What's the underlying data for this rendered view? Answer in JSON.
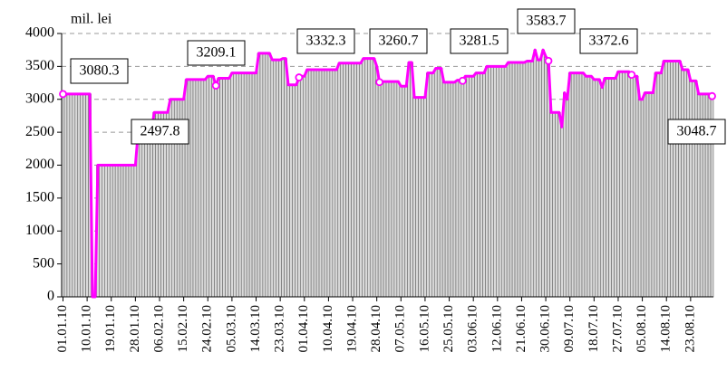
{
  "chart_data": {
    "type": "bar_line",
    "y_label": "mil. lei",
    "ylim": [
      0,
      4000
    ],
    "yticks": [
      0,
      500,
      1000,
      1500,
      2000,
      2500,
      3000,
      3500,
      4000
    ],
    "grid": true,
    "grid_style": "dashed",
    "bar_color": "#d9d9d9",
    "line_color": "#ff00ff",
    "categories": [
      "01.01.10",
      null,
      null,
      null,
      null,
      null,
      null,
      null,
      null,
      "10.01.10",
      null,
      null,
      null,
      null,
      null,
      null,
      null,
      null,
      "19.01.10",
      null,
      null,
      null,
      null,
      null,
      null,
      null,
      null,
      "28.01.10",
      null,
      null,
      null,
      null,
      null,
      null,
      null,
      null,
      "06.02.10",
      null,
      null,
      null,
      null,
      null,
      null,
      null,
      null,
      "15.02.10",
      null,
      null,
      null,
      null,
      null,
      null,
      null,
      null,
      "24.02.10",
      null,
      null,
      null,
      null,
      null,
      null,
      null,
      null,
      "05.03.10",
      null,
      null,
      null,
      null,
      null,
      null,
      null,
      null,
      "14.03.10",
      null,
      null,
      null,
      null,
      null,
      null,
      null,
      null,
      "23.03.10",
      null,
      null,
      null,
      null,
      null,
      null,
      null,
      null,
      "01.04.10",
      null,
      null,
      null,
      null,
      null,
      null,
      null,
      null,
      "10.04.10",
      null,
      null,
      null,
      null,
      null,
      null,
      null,
      null,
      "19.04.10",
      null,
      null,
      null,
      null,
      null,
      null,
      null,
      null,
      "28.04.10",
      null,
      null,
      null,
      null,
      null,
      null,
      null,
      null,
      "07.05.10",
      null,
      null,
      null,
      null,
      null,
      null,
      null,
      null,
      "16.05.10",
      null,
      null,
      null,
      null,
      null,
      null,
      null,
      null,
      "25.05.10",
      null,
      null,
      null,
      null,
      null,
      null,
      null,
      null,
      "03.06.10",
      null,
      null,
      null,
      null,
      null,
      null,
      null,
      null,
      "12.06.10",
      null,
      null,
      null,
      null,
      null,
      null,
      null,
      null,
      "21.06.10",
      null,
      null,
      null,
      null,
      null,
      null,
      null,
      null,
      "30.06.10",
      null,
      null,
      null,
      null,
      null,
      null,
      null,
      null,
      "09.07.10",
      null,
      null,
      null,
      null,
      null,
      null,
      null,
      null,
      "18.07.10",
      null,
      null,
      null,
      null,
      null,
      null,
      null,
      null,
      "27.07.10",
      null,
      null,
      null,
      null,
      null,
      null,
      null,
      null,
      "05.08.10",
      null,
      null,
      null,
      null,
      null,
      null,
      null,
      null,
      "14.08.10",
      null,
      null,
      null,
      null,
      null,
      null,
      null,
      null,
      "23.08.10",
      null,
      null,
      null,
      null,
      null,
      null,
      null,
      null
    ],
    "values": [
      3080.3,
      3080,
      3080,
      3080,
      3080,
      3080,
      3080,
      3080,
      3080,
      3080,
      3080,
      0,
      0,
      2000,
      2000,
      2000,
      2000,
      2000,
      2000,
      2000,
      2000,
      2000,
      2000,
      2000,
      2000,
      2000,
      2000,
      2000,
      2490,
      2497.8,
      2500,
      2500,
      2500,
      2500,
      2800,
      2800,
      2800,
      2800,
      2800,
      2800,
      3000,
      3000,
      3000,
      3000,
      3000,
      3000,
      3300,
      3300,
      3300,
      3300,
      3300,
      3300,
      3300,
      3300,
      3350,
      3350,
      3350,
      3209.1,
      3320,
      3320,
      3320,
      3320,
      3320,
      3400,
      3400,
      3400,
      3400,
      3400,
      3400,
      3400,
      3400,
      3400,
      3400,
      3700,
      3700,
      3700,
      3700,
      3700,
      3600,
      3600,
      3600,
      3600,
      3620,
      3620,
      3220,
      3220,
      3220,
      3220,
      3332.3,
      3350,
      3350,
      3450,
      3450,
      3450,
      3450,
      3450,
      3450,
      3450,
      3450,
      3450,
      3450,
      3450,
      3450,
      3550,
      3550,
      3550,
      3550,
      3550,
      3550,
      3550,
      3550,
      3550,
      3620,
      3620,
      3620,
      3620,
      3620,
      3500,
      3260.7,
      3270,
      3270,
      3270,
      3270,
      3270,
      3270,
      3270,
      3200,
      3200,
      3200,
      3560,
      3560,
      3030,
      3030,
      3030,
      3030,
      3030,
      3400,
      3400,
      3400,
      3470,
      3470,
      3470,
      3260,
      3260,
      3260,
      3260,
      3260,
      3290,
      3290,
      3281.5,
      3350,
      3350,
      3350,
      3350,
      3400,
      3400,
      3400,
      3400,
      3500,
      3500,
      3500,
      3500,
      3500,
      3500,
      3500,
      3500,
      3560,
      3560,
      3560,
      3560,
      3560,
      3560,
      3560,
      3580,
      3580,
      3580,
      3750,
      3600,
      3600,
      3750,
      3650,
      3583.7,
      2800,
      2800,
      2800,
      2800,
      2580,
      3100,
      3000,
      3400,
      3400,
      3400,
      3400,
      3400,
      3400,
      3350,
      3350,
      3350,
      3300,
      3300,
      3300,
      3180,
      3320,
      3320,
      3320,
      3320,
      3320,
      3420,
      3420,
      3420,
      3420,
      3420,
      3372.6,
      3350,
      3350,
      3000,
      3000,
      3100,
      3100,
      3100,
      3100,
      3400,
      3400,
      3400,
      3580,
      3580,
      3580,
      3580,
      3580,
      3580,
      3580,
      3450,
      3450,
      3450,
      3280,
      3280,
      3280,
      3080,
      3080,
      3080,
      3080,
      3080,
      3048.7
    ],
    "value_labels": [
      "3080.3",
      null,
      null,
      null,
      null,
      null,
      null,
      null,
      null,
      null,
      null,
      null,
      null,
      null,
      null,
      null,
      null,
      null,
      null,
      null,
      null,
      null,
      null,
      null,
      null,
      null,
      null,
      null,
      null,
      "2497.8",
      null,
      null,
      null,
      null,
      null,
      null,
      null,
      null,
      null,
      null,
      null,
      null,
      null,
      null,
      null,
      null,
      null,
      null,
      null,
      null,
      null,
      null,
      null,
      null,
      null,
      null,
      null,
      "3209.1",
      null,
      null,
      null,
      null,
      null,
      null,
      null,
      null,
      null,
      null,
      null,
      null,
      null,
      null,
      null,
      null,
      null,
      null,
      null,
      null,
      null,
      null,
      null,
      null,
      null,
      null,
      null,
      null,
      null,
      null,
      "3332.3",
      null,
      null,
      null,
      null,
      null,
      null,
      null,
      null,
      null,
      null,
      null,
      null,
      null,
      null,
      null,
      null,
      null,
      null,
      null,
      null,
      null,
      null,
      null,
      null,
      null,
      null,
      null,
      null,
      null,
      "3260.7",
      null,
      null,
      null,
      null,
      null,
      null,
      null,
      null,
      null,
      null,
      null,
      null,
      null,
      null,
      null,
      null,
      null,
      null,
      null,
      null,
      null,
      null,
      null,
      null,
      null,
      null,
      null,
      null,
      null,
      null,
      "3281.5",
      null,
      null,
      null,
      null,
      null,
      null,
      null,
      null,
      null,
      null,
      null,
      null,
      null,
      null,
      null,
      null,
      null,
      null,
      null,
      null,
      null,
      null,
      null,
      null,
      null,
      null,
      null,
      null,
      null,
      null,
      null,
      "3583.7",
      null,
      null,
      null,
      null,
      null,
      null,
      null,
      null,
      null,
      null,
      null,
      null,
      null,
      null,
      null,
      null,
      null,
      null,
      null,
      null,
      null,
      null,
      null,
      null,
      null,
      null,
      null,
      null,
      null,
      null,
      "3372.6",
      null,
      null,
      null,
      null,
      null,
      null,
      null,
      null,
      null,
      null,
      null,
      null,
      null,
      null,
      null,
      null,
      null,
      null,
      null,
      null,
      null,
      null,
      null,
      null,
      null,
      null,
      null,
      null,
      null,
      "3048.7"
    ]
  }
}
